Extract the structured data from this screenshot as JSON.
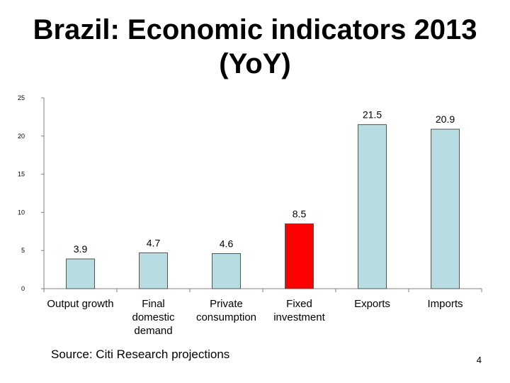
{
  "slide": {
    "title_line1": "Brazil: Economic indicators 2013",
    "title_line2": "(YoY)",
    "source": "Source: Citi Research projections",
    "page_number": "4"
  },
  "chart_data": {
    "type": "bar",
    "categories": [
      [
        "Output growth"
      ],
      [
        "Final",
        "domestic",
        "demand"
      ],
      [
        "Private",
        "consumption"
      ],
      [
        "Fixed",
        "investment"
      ],
      [
        "Exports"
      ],
      [
        "Imports"
      ]
    ],
    "values": [
      3.9,
      4.7,
      4.6,
      8.5,
      21.5,
      20.9
    ],
    "value_labels": [
      "3.9",
      "4.7",
      "4.6",
      "8.5",
      "21.5",
      "20.9"
    ],
    "bar_colors": [
      "#b7dde3",
      "#b7dde3",
      "#b7dde3",
      "#ff0000",
      "#b7dde3",
      "#b7dde3"
    ],
    "bar_outline": "#555555",
    "ylim": [
      0,
      25
    ],
    "yticks": [
      0,
      5,
      10,
      15,
      20,
      25
    ],
    "grid": false,
    "legend": "none"
  }
}
